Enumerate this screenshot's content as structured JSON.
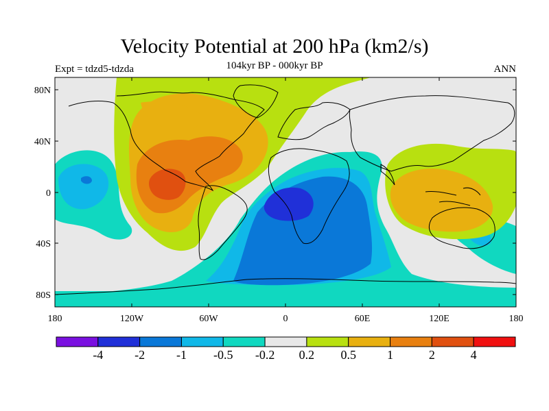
{
  "header": {
    "title": "Velocity Potential at 200 hPa (km2/s)",
    "subtitle": "104kyr BP - 000kyr BP",
    "left_label": "Expt = tdzd5-tdzda",
    "right_label": "ANN"
  },
  "axes": {
    "x_ticks": [
      "180",
      "120W",
      "60W",
      "0",
      "60E",
      "120E",
      "180"
    ],
    "y_ticks": [
      "80N",
      "40N",
      "0",
      "40S",
      "80S"
    ]
  },
  "colorbar": {
    "colors": [
      "#7a10e0",
      "#2030d8",
      "#0a78d8",
      "#10b8e8",
      "#10d8c0",
      "#e8e8e8",
      "#b8e010",
      "#e8b010",
      "#e88010",
      "#e05010",
      "#f01010"
    ],
    "labels": [
      "-4",
      "-2",
      "-1",
      "-0.5",
      "-0.2",
      "0.2",
      "0.5",
      "1",
      "2",
      "4"
    ]
  },
  "map": {
    "ocean_color": "#e8e8e8",
    "coast_color": "#000000"
  }
}
